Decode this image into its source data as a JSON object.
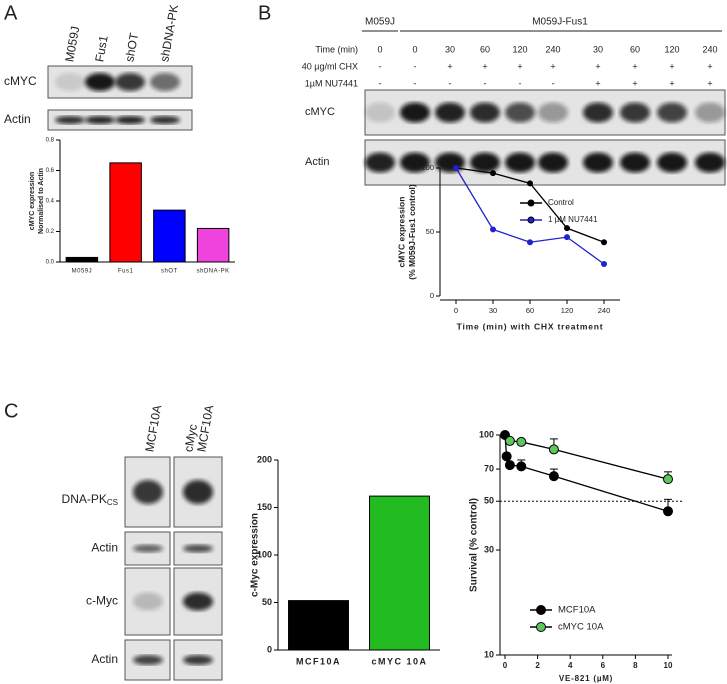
{
  "panels": [
    "A",
    "B",
    "C"
  ],
  "blot_a": {
    "lanes": [
      "M059J",
      "Fus1",
      "shOT",
      "shDNA-PK"
    ],
    "rows": [
      "cMYC",
      "Actin"
    ]
  },
  "blot_b": {
    "groups": [
      "M059J",
      "M059J-Fus1"
    ],
    "row_labels": [
      "Time (min)",
      "40 µg/ml CHX",
      "1µM NU7441"
    ],
    "rows": [
      [
        0,
        0,
        30,
        60,
        120,
        240,
        30,
        60,
        120,
        240
      ],
      [
        "-",
        "-",
        "+",
        "+",
        "+",
        "+",
        "+",
        "+",
        "+",
        "+"
      ],
      [
        "-",
        "-",
        "-",
        "-",
        "-",
        "-",
        "+",
        "+",
        "+",
        "+"
      ]
    ],
    "blots": [
      "cMYC",
      "Actin"
    ]
  },
  "blot_c": {
    "lanes": [
      [
        "MCF10A"
      ],
      [
        "cMyc",
        "MCF10A"
      ]
    ],
    "rows": [
      {
        "text": "DNA-PK",
        "sub": "CS"
      },
      {
        "text": "Actin"
      },
      {
        "text": "c-Myc"
      },
      {
        "text": "Actin"
      }
    ]
  },
  "chart_data": [
    {
      "type": "bar",
      "ylabel": [
        "cMYC expression",
        "Normalised to Actin"
      ],
      "categories": [
        "M059J",
        "Fus1",
        "shOT",
        "shDNA-PK"
      ],
      "values": [
        0.03,
        0.65,
        0.34,
        0.22
      ],
      "colors": [
        "#000000",
        "#ff0000",
        "#0000ff",
        "#ee44dd"
      ],
      "ylim": [
        0,
        0.8
      ],
      "yticks": [
        {
          "value": 0,
          "label": "0.0"
        },
        0.2,
        0.4,
        0.6,
        0.8
      ]
    },
    {
      "type": "line",
      "ylabel": [
        "cMYC expression",
        "(% M059J-Fus1 control)"
      ],
      "xlabel": "Time (min) with CHX treatment",
      "categories": [
        0,
        30,
        60,
        120,
        240
      ],
      "series": [
        {
          "name": "Control",
          "color": "#000000",
          "values": [
            100,
            96,
            88,
            53,
            42
          ]
        },
        {
          "name": "1 µM NU7441",
          "color": "#2222cc",
          "values": [
            100,
            52,
            42,
            46,
            25
          ]
        }
      ],
      "ylim": [
        0,
        100
      ],
      "yticks": [
        0,
        50,
        100
      ],
      "legend": "right"
    },
    {
      "type": "bar",
      "ylabel": [
        "c-Myc expression"
      ],
      "categories": [
        "MCF10A",
        "cMYC 10A"
      ],
      "values": [
        52,
        162
      ],
      "colors": [
        "#000000",
        "#22bb22"
      ],
      "ylim": [
        0,
        200
      ],
      "yticks": [
        0,
        50,
        100,
        150,
        200
      ]
    },
    {
      "type": "scatter",
      "ylabel": [
        "Survival (% control)"
      ],
      "xlabel": "VE-821 (µM)",
      "series": [
        {
          "name": "MCF10A",
          "color": "#000000",
          "x": [
            0,
            0.1,
            0.3,
            1,
            3,
            10
          ],
          "values": [
            100,
            80,
            73,
            72,
            65,
            45
          ],
          "errors": [
            null,
            null,
            null,
            5,
            5,
            6
          ]
        },
        {
          "name": "cMYC 10A",
          "color": "#5cc85c",
          "x": [
            0.3,
            1,
            3,
            10
          ],
          "values": [
            94,
            93,
            86,
            63
          ],
          "errors": [
            null,
            null,
            10,
            5
          ]
        }
      ],
      "xlim": [
        0,
        10
      ],
      "xticks": [
        0,
        2,
        4,
        6,
        8,
        10
      ],
      "ylim": [
        10,
        100
      ],
      "yticks": [
        10,
        30,
        50,
        70,
        100
      ],
      "log_y": true,
      "hline": 50,
      "legend": "lower left"
    }
  ]
}
